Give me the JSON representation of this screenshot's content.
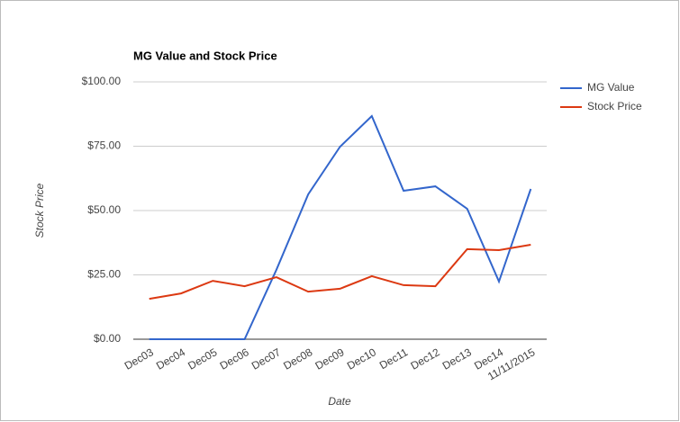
{
  "chart_data": {
    "type": "line",
    "title": "MG Value and Stock Price",
    "x_label": "Date",
    "y_label": "Stock Price",
    "categories": [
      "Dec03",
      "Dec04",
      "Dec05",
      "Dec06",
      "Dec07",
      "Dec08",
      "Dec09",
      "Dec10",
      "Dec11",
      "Dec12",
      "Dec13",
      "Dec14",
      "11/11/2015"
    ],
    "series": [
      {
        "name": "MG Value",
        "color": "#3366cc",
        "values": [
          0,
          0,
          0,
          0,
          27,
          56.3,
          74.8,
          86.7,
          57.7,
          59.4,
          50.7,
          22.4,
          58.4
        ]
      },
      {
        "name": "Stock Price",
        "color": "#dc3912",
        "values": [
          15.7,
          17.8,
          22.7,
          20.6,
          24.1,
          18.5,
          19.6,
          24.5,
          21,
          20.6,
          35,
          34.6,
          36.7
        ]
      }
    ],
    "ylim": [
      0,
      100
    ],
    "yticks": [
      {
        "value": 0,
        "label": "$0.00"
      },
      {
        "value": 25,
        "label": "$25.00"
      },
      {
        "value": 50,
        "label": "$50.00"
      },
      {
        "value": 75,
        "label": "$75.00"
      },
      {
        "value": 100,
        "label": "$100.00"
      }
    ],
    "grid": true,
    "legend": "right"
  }
}
